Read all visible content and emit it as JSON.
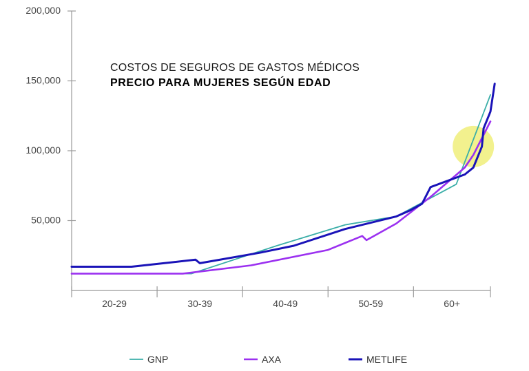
{
  "chart_data": {
    "type": "line",
    "title": "COSTOS DE SEGUROS DE GASTOS MÉDICOS",
    "subtitle": "PRECIO PARA MUJERES SEGÚN EDAD",
    "y_ticks": [
      "200,000",
      "150,000",
      "100,000",
      "50,000"
    ],
    "y_tick_values": [
      200000,
      150000,
      100000,
      50000
    ],
    "ylim": [
      0,
      200000
    ],
    "xlim": [
      20,
      69
    ],
    "categories": [
      "20-29",
      "30-39",
      "40-49",
      "50-59",
      "60+"
    ],
    "category_bounds": [
      [
        20,
        30
      ],
      [
        30,
        40
      ],
      [
        40,
        50
      ],
      [
        50,
        60
      ],
      [
        60,
        69
      ]
    ],
    "grid": false,
    "legend_position": "bottom",
    "highlight": {
      "x": 67,
      "y": 103000,
      "color": "#f0ee7a"
    },
    "series": [
      {
        "name": "GNP",
        "color": "#3aaea8",
        "points": [
          [
            20,
            12000
          ],
          [
            34,
            12000
          ],
          [
            44,
            32000
          ],
          [
            52,
            47000
          ],
          [
            58,
            53000
          ],
          [
            65,
            76000
          ],
          [
            69,
            140000
          ]
        ]
      },
      {
        "name": "AXA",
        "color": "#9b30f0",
        "points": [
          [
            20,
            12000
          ],
          [
            33,
            12000
          ],
          [
            41,
            18000
          ],
          [
            50,
            29000
          ],
          [
            54,
            39000
          ],
          [
            54.5,
            36000
          ],
          [
            58,
            48000
          ],
          [
            62,
            67000
          ],
          [
            66,
            88000
          ],
          [
            67,
            97000
          ],
          [
            69,
            121000
          ]
        ]
      },
      {
        "name": "METLIFE",
        "color": "#1a13b8",
        "points": [
          [
            20,
            17000
          ],
          [
            27,
            17000
          ],
          [
            34.5,
            22000
          ],
          [
            35,
            19500
          ],
          [
            42,
            27000
          ],
          [
            46,
            32000
          ],
          [
            52,
            44000
          ],
          [
            58,
            53000
          ],
          [
            59.5,
            57000
          ],
          [
            61,
            62000
          ],
          [
            62,
            74000
          ],
          [
            66,
            83000
          ],
          [
            67,
            88000
          ],
          [
            68,
            103000
          ],
          [
            68.2,
            116000
          ],
          [
            69,
            128000
          ],
          [
            69.5,
            148000
          ]
        ]
      }
    ]
  }
}
